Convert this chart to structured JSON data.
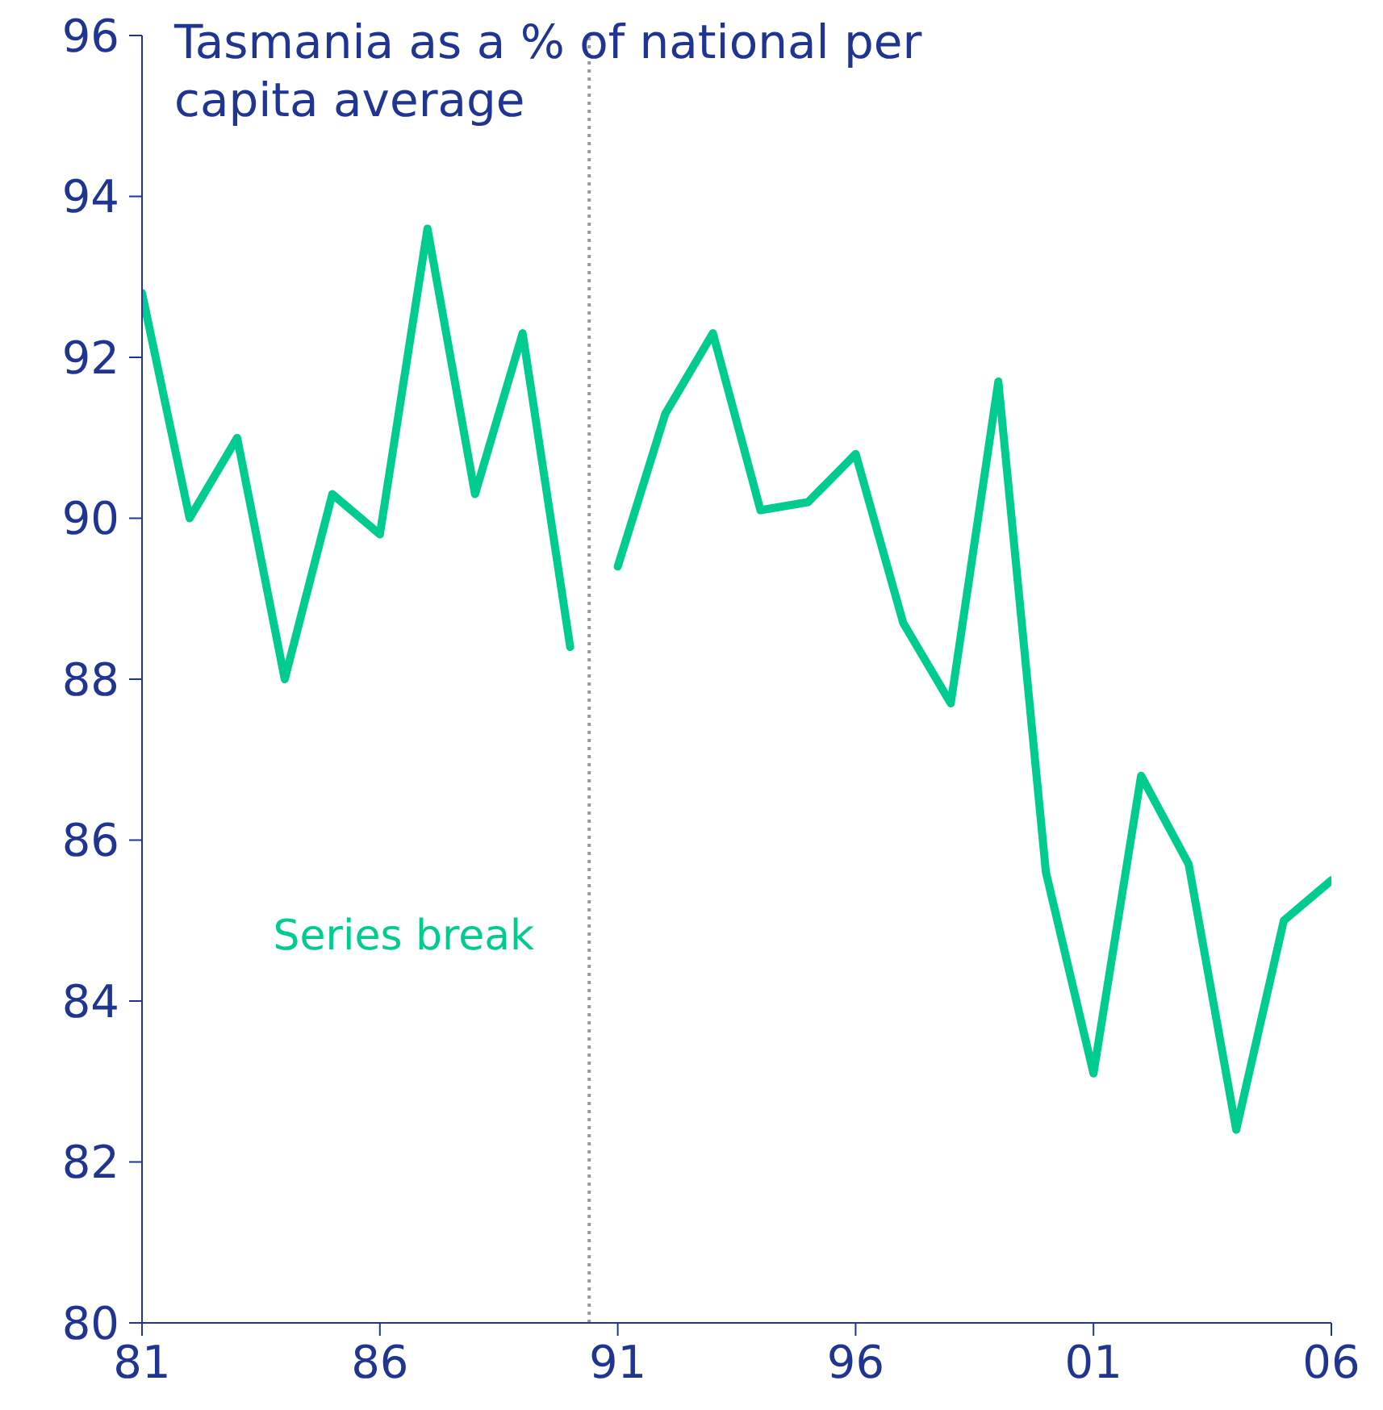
{
  "chart_data": {
    "type": "line",
    "title": "Tasmania as a % of national per capita average",
    "series": [
      {
        "color": "#00cc8f",
        "x": [
          1981,
          1982,
          1983,
          1984,
          1985,
          1986,
          1987,
          1988,
          1989,
          1990
        ],
        "values": [
          92.8,
          90.0,
          91.0,
          88.0,
          90.3,
          89.8,
          93.6,
          90.3,
          92.3,
          88.4
        ]
      },
      {
        "color": "#00cc8f",
        "x": [
          1991,
          1992,
          1993,
          1994,
          1995,
          1996,
          1997,
          1998,
          1999,
          2000,
          2001,
          2002,
          2003,
          2004,
          2005,
          2006
        ],
        "values": [
          89.4,
          91.3,
          92.3,
          90.1,
          90.2,
          90.8,
          88.7,
          87.7,
          91.7,
          85.6,
          83.1,
          86.8,
          85.7,
          82.4,
          85.0,
          85.5
        ]
      }
    ],
    "xlim": [
      1981,
      2006
    ],
    "xticks": [
      {
        "value": 1981,
        "label": "81"
      },
      {
        "value": 1986,
        "label": "86"
      },
      {
        "value": 1991,
        "label": "91"
      },
      {
        "value": 1996,
        "label": "96"
      },
      {
        "value": 2001,
        "label": "01"
      },
      {
        "value": 2006,
        "label": "06"
      }
    ],
    "ylim": [
      80,
      96
    ],
    "yticks": [
      80,
      82,
      84,
      86,
      88,
      90,
      92,
      94,
      96
    ],
    "ref_lines": [
      {
        "axis": "x",
        "value": 1990.4,
        "label": "Series break",
        "color": "#999999",
        "line_style": "dotted"
      }
    ],
    "grid": false,
    "legend": false,
    "marker": "none",
    "line_style": "solid"
  }
}
